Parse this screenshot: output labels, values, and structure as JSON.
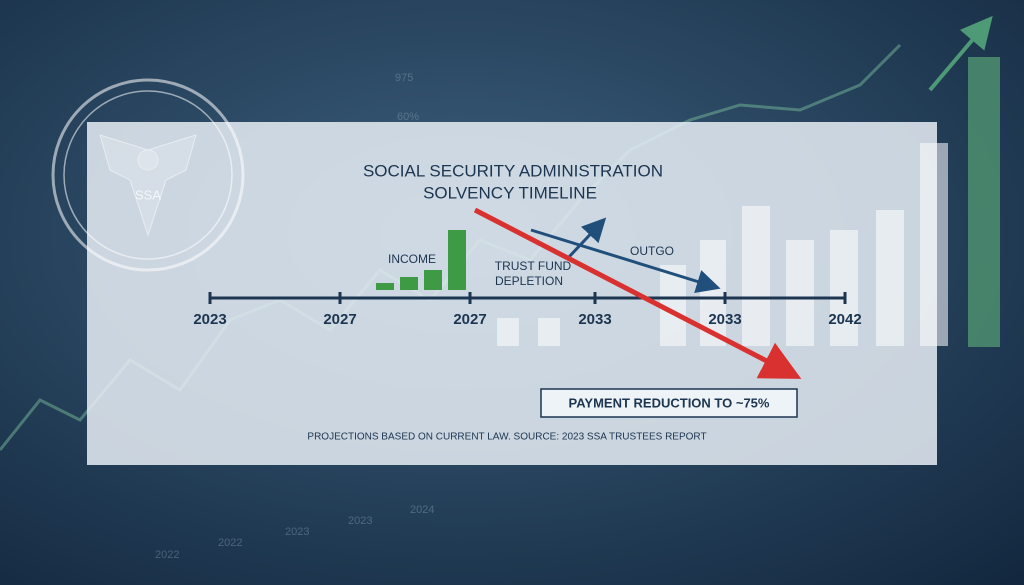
{
  "seal": {
    "label": "SSA"
  },
  "title": [
    "SOCIAL SECURITY ADMINISTRATION",
    "SOLVENCY TIMELINE"
  ],
  "labels": {
    "income": "INCOME",
    "trust_fund": [
      "TRUST FUND",
      "DEPLETION"
    ],
    "outgo": "OUTGO"
  },
  "timeline": [
    "2023",
    "2027",
    "2027",
    "2033",
    "2033",
    "2042"
  ],
  "callout": "PAYMENT REDUCTION TO ~75%",
  "footnote": "PROJECTIONS BASED ON CURRENT LAW. SOURCE: 2023 SSA TRUSTEES REPORT",
  "background_labels": [
    "975",
    "60%",
    "2022",
    "2022",
    "2023",
    "2023",
    "2024"
  ]
}
